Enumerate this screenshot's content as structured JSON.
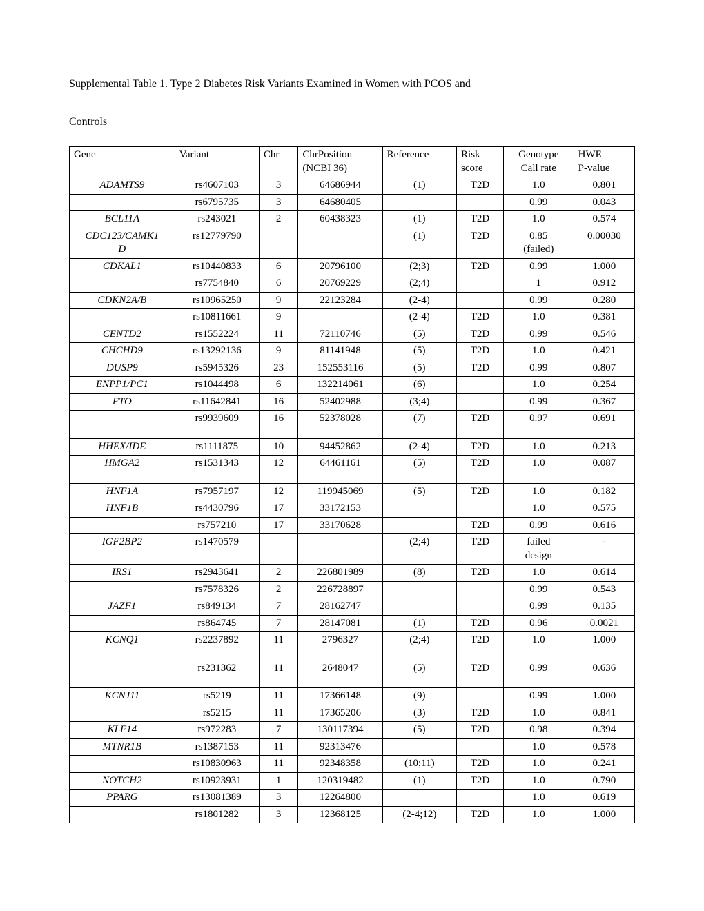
{
  "title_line1": "Supplemental Table 1. Type 2 Diabetes Risk Variants Examined in Women with PCOS and",
  "title_line2": "Controls",
  "headers": {
    "gene": "Gene",
    "variant": "Variant",
    "chr": "Chr",
    "chrpos_l1": "ChrPosition",
    "chrpos_l2": "(NCBI 36)",
    "reference": "Reference",
    "risk_l1": "Risk",
    "risk_l2": "score",
    "callrate_l1": "Genotype",
    "callrate_l2": "Call rate",
    "hwe_l1": "HWE",
    "hwe_l2": "P-value"
  },
  "rows": [
    {
      "gene": "ADAMTS9",
      "variant": "rs4607103",
      "chr": "3",
      "chrpos": "64686944",
      "ref": "(1)",
      "risk": "T2D",
      "callrate": "1.0",
      "hwe": "0.801"
    },
    {
      "gene": "",
      "variant": "rs6795735",
      "chr": "3",
      "chrpos": "64680405",
      "ref": "",
      "risk": "",
      "callrate": "0.99",
      "hwe": "0.043"
    },
    {
      "gene": "BCL11A",
      "variant": "rs243021",
      "chr": "2",
      "chrpos": "60438323",
      "ref": "(1)",
      "risk": "T2D",
      "callrate": "1.0",
      "hwe": "0.574"
    },
    {
      "gene": "CDC123/CAMK1D",
      "variant": "rs12779790",
      "chr": "",
      "chrpos": "",
      "ref": "(1)",
      "risk": "T2D",
      "callrate": "0.85 (failed)",
      "hwe": "0.00030",
      "multiline_gene": true,
      "multiline_callrate": true
    },
    {
      "gene": "CDKAL1",
      "variant": "rs10440833",
      "chr": "6",
      "chrpos": "20796100",
      "ref": "(2;3)",
      "risk": "T2D",
      "callrate": "0.99",
      "hwe": "1.000"
    },
    {
      "gene": "",
      "variant": "rs7754840",
      "chr": "6",
      "chrpos": "20769229",
      "ref": "(2;4)",
      "risk": "",
      "callrate": "1",
      "hwe": "0.912"
    },
    {
      "gene": "CDKN2A/B",
      "variant": "rs10965250",
      "chr": "9",
      "chrpos": "22123284",
      "ref": "(2-4)",
      "risk": "",
      "callrate": "0.99",
      "hwe": "0.280"
    },
    {
      "gene": "",
      "variant": "rs10811661",
      "chr": "9",
      "chrpos": "",
      "ref": "(2-4)",
      "risk": "T2D",
      "callrate": "1.0",
      "hwe": "0.381"
    },
    {
      "gene": "CENTD2",
      "variant": "rs1552224",
      "chr": "11",
      "chrpos": "72110746",
      "ref": "(5)",
      "risk": "T2D",
      "callrate": "0.99",
      "hwe": "0.546"
    },
    {
      "gene": "CHCHD9",
      "variant": "rs13292136",
      "chr": "9",
      "chrpos": "81141948",
      "ref": "(5)",
      "risk": "T2D",
      "callrate": "1.0",
      "hwe": "0.421"
    },
    {
      "gene": "DUSP9",
      "variant": "rs5945326",
      "chr": "23",
      "chrpos": "152553116",
      "ref": "(5)",
      "risk": "T2D",
      "callrate": "0.99",
      "hwe": "0.807"
    },
    {
      "gene": "ENPP1/PC1",
      "variant": "rs1044498",
      "chr": "6",
      "chrpos": "132214061",
      "ref": "(6)",
      "risk": "",
      "callrate": "1.0",
      "hwe": "0.254"
    },
    {
      "gene": "FTO",
      "variant": "rs11642841",
      "chr": "16",
      "chrpos": "52402988",
      "ref": "(3;4)",
      "risk": "",
      "callrate": "0.99",
      "hwe": "0.367"
    },
    {
      "gene": "",
      "variant": "rs9939609",
      "chr": "16",
      "chrpos": "52378028",
      "ref": "(7)",
      "risk": "T2D",
      "callrate": "0.97",
      "hwe": "0.691",
      "tall": true
    },
    {
      "gene": "HHEX/IDE",
      "variant": "rs1111875",
      "chr": "10",
      "chrpos": "94452862",
      "ref": "(2-4)",
      "risk": "T2D",
      "callrate": "1.0",
      "hwe": "0.213"
    },
    {
      "gene": "HMGA2",
      "variant": "rs1531343",
      "chr": "12",
      "chrpos": "64461161",
      "ref": "(5)",
      "risk": "T2D",
      "callrate": "1.0",
      "hwe": "0.087",
      "tall": true
    },
    {
      "gene": "HNF1A",
      "variant": "rs7957197",
      "chr": "12",
      "chrpos": "119945069",
      "ref": "(5)",
      "risk": "T2D",
      "callrate": "1.0",
      "hwe": "0.182"
    },
    {
      "gene": "HNF1B",
      "variant": "rs4430796",
      "chr": "17",
      "chrpos": "33172153",
      "ref": "",
      "risk": "",
      "callrate": "1.0",
      "hwe": "0.575"
    },
    {
      "gene": "",
      "variant": "rs757210",
      "chr": "17",
      "chrpos": "33170628",
      "ref": "",
      "risk": "T2D",
      "callrate": "0.99",
      "hwe": "0.616"
    },
    {
      "gene": "IGF2BP2",
      "variant": "rs1470579",
      "chr": "",
      "chrpos": "",
      "ref": "(2;4)",
      "risk": "T2D",
      "callrate": "failed design",
      "hwe": "-",
      "multiline_callrate": true
    },
    {
      "gene": "IRS1",
      "variant": "rs2943641",
      "chr": "2",
      "chrpos": "226801989",
      "ref": "(8)",
      "risk": "T2D",
      "callrate": "1.0",
      "hwe": "0.614"
    },
    {
      "gene": "",
      "variant": "rs7578326",
      "chr": "2",
      "chrpos": "226728897",
      "ref": "",
      "risk": "",
      "callrate": "0.99",
      "hwe": "0.543"
    },
    {
      "gene": "JAZF1",
      "variant": "rs849134",
      "chr": "7",
      "chrpos": "28162747",
      "ref": "",
      "risk": "",
      "callrate": "0.99",
      "hwe": "0.135"
    },
    {
      "gene": "",
      "variant": "rs864745",
      "chr": "7",
      "chrpos": "28147081",
      "ref": "(1)",
      "risk": "T2D",
      "callrate": "0.96",
      "hwe": "0.0021"
    },
    {
      "gene": "KCNQ1",
      "variant": "rs2237892",
      "chr": "11",
      "chrpos": "2796327",
      "ref": "(2;4)",
      "risk": "T2D",
      "callrate": "1.0",
      "hwe": "1.000",
      "tall": true
    },
    {
      "gene": "",
      "variant": "rs231362",
      "chr": "11",
      "chrpos": "2648047",
      "ref": "(5)",
      "risk": "T2D",
      "callrate": "0.99",
      "hwe": "0.636",
      "tall": true
    },
    {
      "gene": "KCNJ11",
      "variant": "rs5219",
      "chr": "11",
      "chrpos": "17366148",
      "ref": "(9)",
      "risk": "",
      "callrate": "0.99",
      "hwe": "1.000"
    },
    {
      "gene": "",
      "variant": "rs5215",
      "chr": "11",
      "chrpos": "17365206",
      "ref": "(3)",
      "risk": "T2D",
      "callrate": "1.0",
      "hwe": "0.841"
    },
    {
      "gene": "KLF14",
      "variant": "rs972283",
      "chr": "7",
      "chrpos": "130117394",
      "ref": "(5)",
      "risk": "T2D",
      "callrate": "0.98",
      "hwe": "0.394"
    },
    {
      "gene": "MTNR1B",
      "variant": "rs1387153",
      "chr": "11",
      "chrpos": "92313476",
      "ref": "",
      "risk": "",
      "callrate": "1.0",
      "hwe": "0.578"
    },
    {
      "gene": "",
      "variant": "rs10830963",
      "chr": "11",
      "chrpos": "92348358",
      "ref": "(10;11)",
      "risk": "T2D",
      "callrate": "1.0",
      "hwe": "0.241"
    },
    {
      "gene": "NOTCH2",
      "variant": "rs10923931",
      "chr": "1",
      "chrpos": "120319482",
      "ref": "(1)",
      "risk": "T2D",
      "callrate": "1.0",
      "hwe": "0.790"
    },
    {
      "gene": "PPARG",
      "variant": "rs13081389",
      "chr": "3",
      "chrpos": "12264800",
      "ref": "",
      "risk": "",
      "callrate": "1.0",
      "hwe": "0.619"
    },
    {
      "gene": "",
      "variant": "rs1801282",
      "chr": "3",
      "chrpos": "12368125",
      "ref": "(2-4;12)",
      "risk": "T2D",
      "callrate": "1.0",
      "hwe": "1.000"
    }
  ]
}
